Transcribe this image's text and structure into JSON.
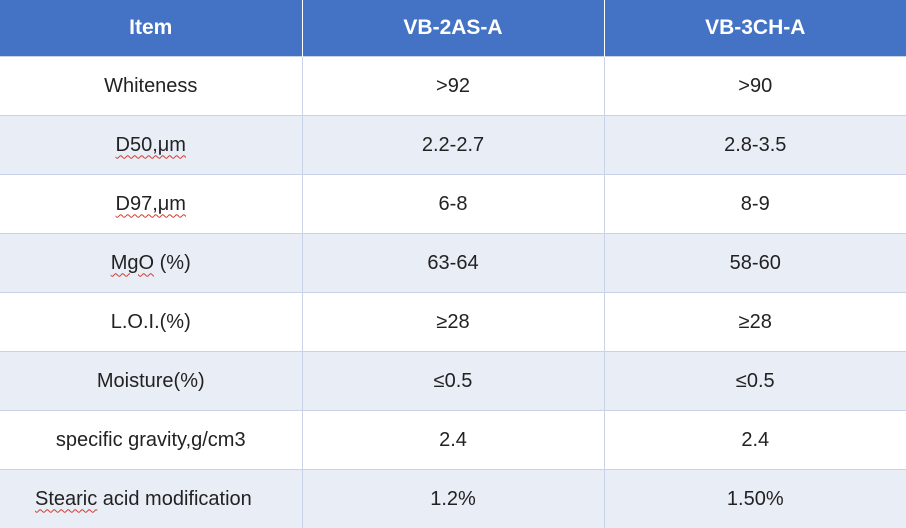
{
  "table": {
    "headers": [
      "Item",
      "VB-2AS-A",
      "VB-3CH-A"
    ],
    "rows": [
      {
        "item": "Whiteness",
        "vb2as": ">92",
        "vb3ch": ">90"
      },
      {
        "item_prefix": "",
        "item_marked": "D50,μm",
        "vb2as": "2.2-2.7",
        "vb3ch": "2.8-3.5"
      },
      {
        "item_marked": "D97,μm",
        "vb2as": "6-8",
        "vb3ch": "8-9"
      },
      {
        "item_marked": "MgO",
        "item_suffix": " (%)",
        "vb2as": "63-64",
        "vb3ch": "58-60"
      },
      {
        "item": "L.O.I.(%)",
        "vb2as": "≥28",
        "vb3ch": "≥28"
      },
      {
        "item": "Moisture(%)",
        "vb2as": "≤0.5",
        "vb3ch": "≤0.5"
      },
      {
        "item": "specific gravity,g/cm3",
        "vb2as": "2.4",
        "vb3ch": "2.4"
      },
      {
        "item_marked": "Stearic",
        "item_suffix": " acid modification",
        "vb2as": "1.2%",
        "vb3ch": "1.50%"
      }
    ]
  },
  "colors": {
    "header_bg": "#4472c4",
    "header_text": "#ffffff",
    "band_row": "#e9edf6",
    "spellcheck_underline": "#d23a2e"
  }
}
